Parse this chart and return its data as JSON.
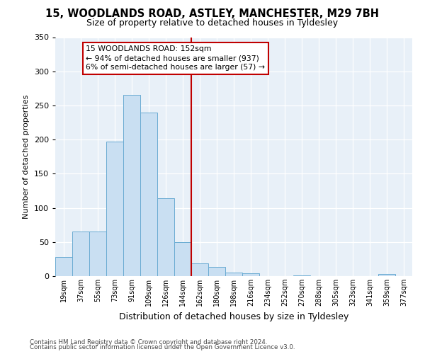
{
  "title_line1": "15, WOODLANDS ROAD, ASTLEY, MANCHESTER, M29 7BH",
  "title_line2": "Size of property relative to detached houses in Tyldesley",
  "xlabel": "Distribution of detached houses by size in Tyldesley",
  "ylabel": "Number of detached properties",
  "bar_labels": [
    "19sqm",
    "37sqm",
    "55sqm",
    "73sqm",
    "91sqm",
    "109sqm",
    "126sqm",
    "144sqm",
    "162sqm",
    "180sqm",
    "198sqm",
    "216sqm",
    "234sqm",
    "252sqm",
    "270sqm",
    "288sqm",
    "305sqm",
    "323sqm",
    "341sqm",
    "359sqm",
    "377sqm"
  ],
  "bar_values": [
    28,
    65,
    65,
    197,
    265,
    240,
    114,
    50,
    19,
    13,
    5,
    4,
    0,
    0,
    1,
    0,
    0,
    0,
    0,
    3,
    0
  ],
  "bar_color": "#c9dff2",
  "bar_edge_color": "#6aabd2",
  "vline_color": "#c00000",
  "annotation_text": "15 WOODLANDS ROAD: 152sqm\n← 94% of detached houses are smaller (937)\n6% of semi-detached houses are larger (57) →",
  "annotation_box_edge_color": "#c00000",
  "ylim": [
    0,
    350
  ],
  "yticks": [
    0,
    50,
    100,
    150,
    200,
    250,
    300,
    350
  ],
  "footer_line1": "Contains HM Land Registry data © Crown copyright and database right 2024.",
  "footer_line2": "Contains public sector information licensed under the Open Government Licence v3.0.",
  "bg_color": "#ffffff",
  "grid_color": "#d0dce8"
}
